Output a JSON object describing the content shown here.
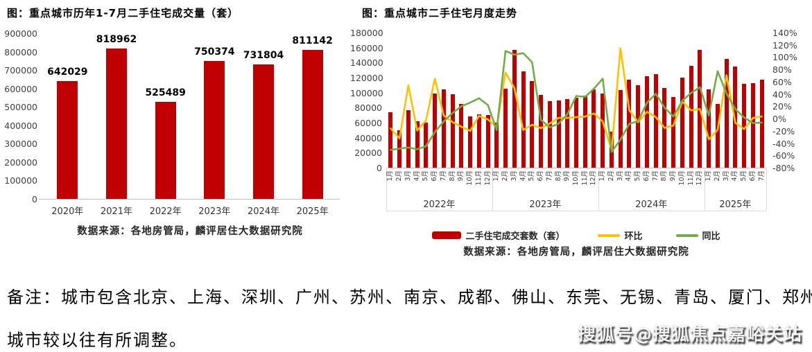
{
  "colors": {
    "bar_red": "#c00000",
    "line_yellow": "#ffc000",
    "line_green": "#70ad47",
    "axis_text": "#404040",
    "axis_line": "#bfbfbf"
  },
  "note": {
    "line1": "备注：城市包含北京、上海、深圳、广州、苏州、南京、成都、佛山、东莞、无锡、青岛、厦门、郑州，",
    "line2": "城市较以往有所调整。"
  },
  "watermark": {
    "text": "搜狐号@搜狐焦点嘉峪关站"
  },
  "chart_data": [
    {
      "type": "bar",
      "title": "图：重点城市历年1-7月二手住宅成交量（套）",
      "categories": [
        "2020年",
        "2021年",
        "2022年",
        "2023年",
        "2024年",
        "2025年"
      ],
      "values": [
        642029,
        818962,
        525489,
        750374,
        731804,
        811142
      ],
      "xlabel": "",
      "ylabel": "",
      "ylim": [
        0,
        900000
      ],
      "ytick_step": 100000,
      "grid": false,
      "value_labels": true,
      "bar_color": "#c00000",
      "source": "数据来源：各地房管局，麟评居住大数据研究院"
    },
    {
      "type": "bar+line",
      "title": "图：重点城市二手住宅月度走势",
      "month_label_suffix": "月",
      "year_groups": [
        {
          "label": "2022年",
          "months": 12
        },
        {
          "label": "2023年",
          "months": 12
        },
        {
          "label": "2024年",
          "months": 12
        },
        {
          "label": "2025年",
          "months": 7
        }
      ],
      "left_ylim": [
        0,
        180000
      ],
      "left_ytick_step": 20000,
      "right_ylim": [
        -80,
        140
      ],
      "right_ytick_step": 20,
      "right_tick_suffix": "%",
      "grid": false,
      "legend_position": "bottom",
      "series": [
        {
          "name": "二手住宅成交套数（套）",
          "type": "bar",
          "axis": "left",
          "color": "#c00000",
          "values": [
            74000,
            50000,
            77000,
            62000,
            60000,
            99000,
            104000,
            98000,
            85000,
            68000,
            71000,
            70000,
            60000,
            105000,
            157000,
            128000,
            115000,
            97000,
            89000,
            90000,
            91000,
            93000,
            96000,
            104000,
            99000,
            48000,
            103000,
            117000,
            110000,
            122000,
            125000,
            106000,
            94000,
            120000,
            136000,
            157000,
            104000,
            85000,
            145000,
            135000,
            112000,
            113000,
            117000
          ]
        },
        {
          "name": "环比",
          "type": "line",
          "axis": "right",
          "color": "#ffc000",
          "values": [
            -16.0,
            -32.4,
            54.0,
            -19.5,
            -3.2,
            65.0,
            5.1,
            -5.8,
            -13.3,
            -20.0,
            4.4,
            -1.4,
            -14.3,
            75.0,
            49.5,
            -18.5,
            -10.2,
            -15.7,
            -8.2,
            1.1,
            1.1,
            2.2,
            3.2,
            8.3,
            -4.8,
            -51.5,
            114.6,
            13.6,
            -6.0,
            10.9,
            2.5,
            -15.2,
            -11.3,
            27.7,
            13.3,
            15.4,
            -33.8,
            -18.3,
            70.6,
            -6.9,
            -17.0,
            0.9,
            3.5
          ]
        },
        {
          "name": "同比",
          "type": "line",
          "axis": "right",
          "color": "#70ad47",
          "values": [
            -51,
            -49,
            -47,
            -50,
            -45,
            -22,
            -5,
            9,
            20,
            26,
            33,
            22,
            -18.9,
            110.0,
            103.9,
            106.5,
            91.7,
            -2.0,
            -14.4,
            -8.2,
            7.1,
            36.8,
            35.2,
            48.6,
            65.0,
            -54.3,
            -34.4,
            -8.6,
            -4.3,
            25.8,
            40.4,
            17.8,
            3.3,
            29.0,
            41.7,
            51.0,
            5.1,
            77.1,
            40.8,
            15.4,
            1.8,
            -7.4,
            -6.4
          ]
        }
      ],
      "source": "数据来源：各地房管局，麟评居住大数据研究院"
    }
  ]
}
